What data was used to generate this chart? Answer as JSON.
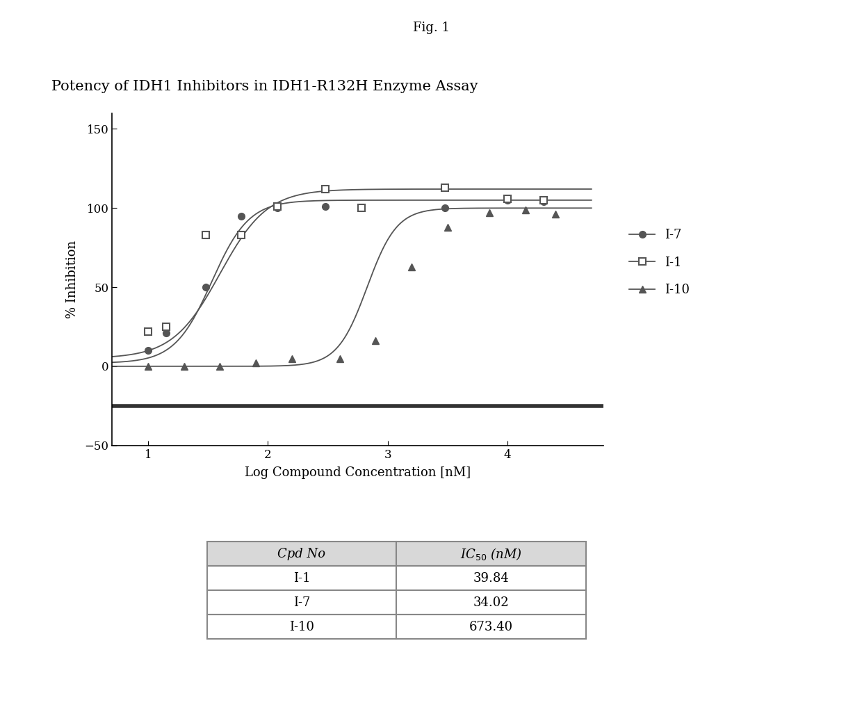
{
  "fig_label": "Fig. 1",
  "title": "Potency of IDH1 Inhibitors in IDH1-R132H Enzyme Assay",
  "xlabel": "Log Compound Concentration [nM]",
  "ylabel": "% Inhibition",
  "xlim": [
    0.7,
    4.8
  ],
  "ylim": [
    -50,
    160
  ],
  "xticks": [
    1,
    2,
    3,
    4
  ],
  "yticks": [
    -50,
    0,
    50,
    100,
    150
  ],
  "background_color": "#ffffff",
  "hline_y": -25,
  "I7_x": [
    1.0,
    1.15,
    1.48,
    1.78,
    2.08,
    2.48,
    2.78,
    3.48,
    4.0,
    4.3
  ],
  "I7_y": [
    10,
    21,
    50,
    95,
    100,
    101,
    100,
    100,
    105,
    104
  ],
  "I1_x": [
    1.0,
    1.15,
    1.48,
    1.78,
    2.08,
    2.48,
    2.78,
    3.48,
    4.0,
    4.3
  ],
  "I1_y": [
    22,
    25,
    83,
    83,
    101,
    112,
    100,
    113,
    106,
    105
  ],
  "I10_x": [
    1.0,
    1.3,
    1.6,
    1.9,
    2.2,
    2.6,
    2.9,
    3.2,
    3.5,
    3.85,
    4.15,
    4.4
  ],
  "I10_y": [
    0,
    0,
    0,
    2,
    5,
    5,
    16,
    63,
    88,
    97,
    99,
    96
  ],
  "IC50_I7": 34.02,
  "IC50_I1": 39.84,
  "IC50_I10": 673.4,
  "table_compounds": [
    "I-1",
    "I-7",
    "I-10"
  ],
  "table_ic50": [
    "39.84",
    "34.02",
    "673.40"
  ],
  "font_family": "DejaVu Serif"
}
